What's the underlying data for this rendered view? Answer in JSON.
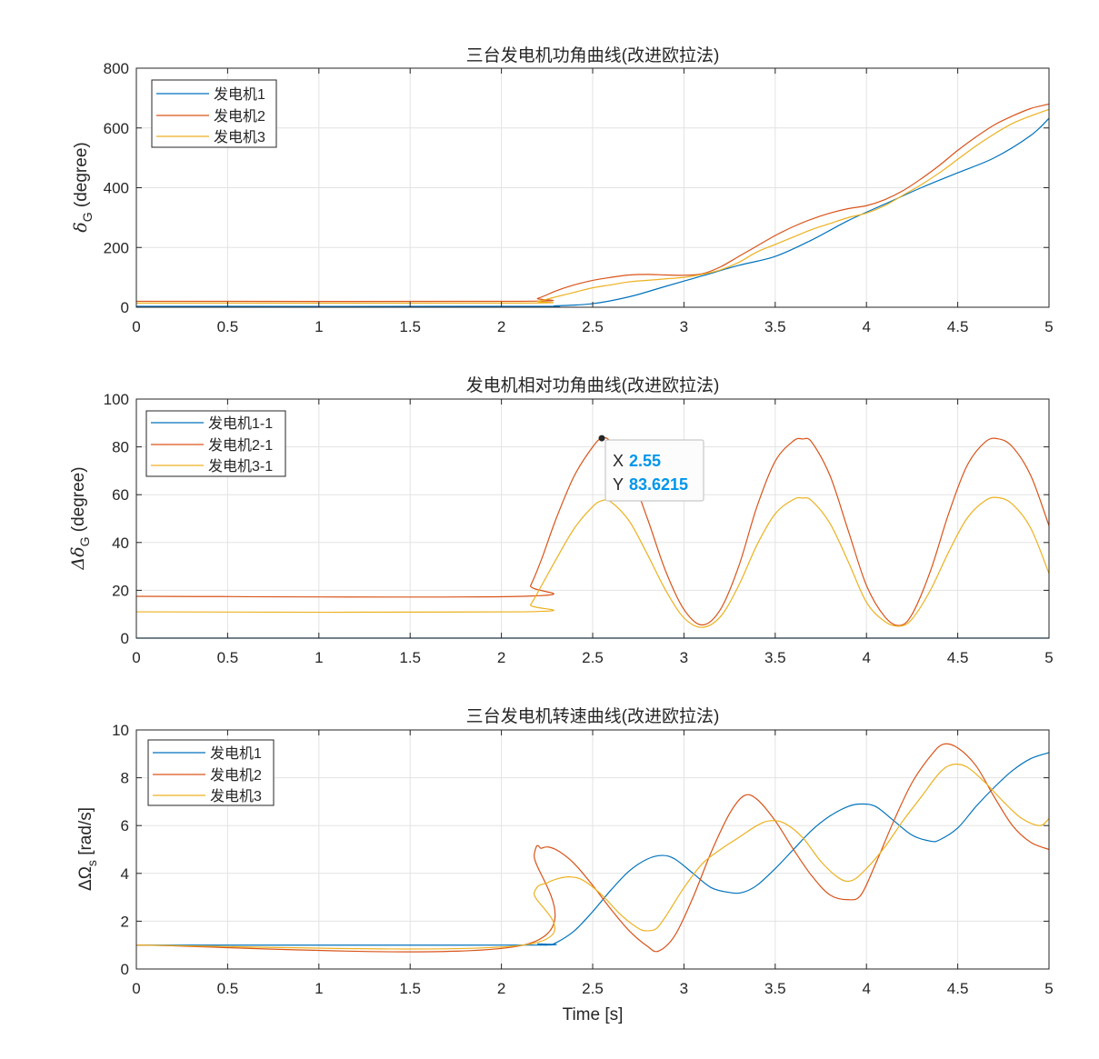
{
  "colors": {
    "series1": "#0072BD",
    "series2": "#D95319",
    "series3": "#EDB120",
    "axis": "#262626",
    "grid": "#e3e3e3",
    "datatip_value": "#0096EB"
  },
  "x_axis_label": "Time [s]",
  "chart_data": [
    {
      "type": "line",
      "title": "三台发电机功角曲线(改进欧拉法)",
      "ylabel_main": "δ",
      "ylabel_sub": "G",
      "ylabel_rest": " (degree)",
      "xlim": [
        0,
        5
      ],
      "ylim": [
        0,
        800
      ],
      "xticks": [
        0,
        0.5,
        1,
        1.5,
        2,
        2.5,
        3,
        3.5,
        4,
        4.5,
        5
      ],
      "xtick_labels": [
        "0",
        "0.5",
        "1",
        "1.5",
        "2",
        "2.5",
        "3",
        "3.5",
        "4",
        "4.5",
        "5"
      ],
      "yticks": [
        0,
        200,
        400,
        600,
        800
      ],
      "ytick_labels": [
        "0",
        "200",
        "400",
        "600",
        "800"
      ],
      "grid": true,
      "legend": "top-left",
      "series": [
        {
          "name": "发电机1",
          "x": [
            0,
            2.1,
            2.3,
            2.5,
            2.7,
            2.9,
            3.1,
            3.3,
            3.5,
            3.7,
            3.9,
            4.1,
            4.3,
            4.5,
            4.7,
            4.9,
            5.0
          ],
          "y": [
            3,
            3,
            5,
            12,
            35,
            70,
            105,
            140,
            170,
            225,
            290,
            345,
            400,
            450,
            500,
            575,
            632
          ]
        },
        {
          "name": "发电机2",
          "x": [
            0,
            2.1,
            2.2,
            2.3,
            2.4,
            2.5,
            2.6,
            2.7,
            2.8,
            2.9,
            3.0,
            3.1,
            3.2,
            3.3,
            3.4,
            3.5,
            3.6,
            3.7,
            3.8,
            3.9,
            4.0,
            4.1,
            4.2,
            4.3,
            4.4,
            4.5,
            4.6,
            4.7,
            4.8,
            4.9,
            5.0
          ],
          "y": [
            20,
            20,
            30,
            55,
            75,
            90,
            100,
            108,
            110,
            108,
            107,
            112,
            135,
            170,
            205,
            240,
            270,
            295,
            315,
            330,
            340,
            360,
            390,
            430,
            475,
            525,
            570,
            610,
            640,
            665,
            680
          ]
        },
        {
          "name": "发电机3",
          "x": [
            0,
            2.1,
            2.2,
            2.3,
            2.4,
            2.5,
            2.6,
            2.7,
            2.8,
            2.9,
            3.0,
            3.1,
            3.2,
            3.3,
            3.4,
            3.5,
            3.6,
            3.7,
            3.8,
            3.9,
            4.0,
            4.1,
            4.2,
            4.3,
            4.4,
            4.5,
            4.6,
            4.7,
            4.8,
            4.9,
            5.0
          ],
          "y": [
            14,
            14,
            20,
            35,
            50,
            65,
            75,
            85,
            90,
            95,
            100,
            110,
            125,
            150,
            185,
            210,
            235,
            260,
            280,
            300,
            315,
            340,
            375,
            410,
            450,
            495,
            540,
            580,
            615,
            640,
            662
          ]
        }
      ]
    },
    {
      "type": "line",
      "title": "发电机相对功角曲线(改进欧拉法)",
      "ylabel_main": "Δδ",
      "ylabel_sub": "G",
      "ylabel_rest": " (degree)",
      "xlim": [
        0,
        5
      ],
      "ylim": [
        0,
        100
      ],
      "xticks": [
        0,
        0.5,
        1,
        1.5,
        2,
        2.5,
        3,
        3.5,
        4,
        4.5,
        5
      ],
      "xtick_labels": [
        "0",
        "0.5",
        "1",
        "1.5",
        "2",
        "2.5",
        "3",
        "3.5",
        "4",
        "4.5",
        "5"
      ],
      "yticks": [
        0,
        20,
        40,
        60,
        80,
        100
      ],
      "ytick_labels": [
        "0",
        "20",
        "40",
        "60",
        "80",
        "100"
      ],
      "grid": true,
      "legend": "top-left",
      "series": [
        {
          "name": "发电机1-1",
          "x": [
            0,
            5
          ],
          "y": [
            0,
            0
          ]
        },
        {
          "name": "发电机2-1",
          "x": [
            0,
            2.12,
            2.16,
            2.22,
            2.3,
            2.4,
            2.5,
            2.55,
            2.6,
            2.7,
            2.8,
            2.9,
            3.0,
            3.1,
            3.2,
            3.3,
            3.4,
            3.5,
            3.6,
            3.65,
            3.7,
            3.8,
            3.9,
            4.0,
            4.1,
            4.18,
            4.25,
            4.35,
            4.45,
            4.55,
            4.65,
            4.72,
            4.8,
            4.9,
            5.0
          ],
          "y": [
            17.5,
            17.5,
            22,
            33,
            50,
            68,
            80,
            83.6,
            82,
            70,
            50,
            28,
            12,
            5.5,
            12,
            30,
            55,
            74,
            82.5,
            83.3,
            82,
            68,
            45,
            22,
            9,
            5.3,
            10,
            28,
            52,
            72,
            82,
            83.4,
            80,
            68,
            47
          ]
        },
        {
          "name": "发电机3-1",
          "x": [
            0,
            2.12,
            2.16,
            2.22,
            2.3,
            2.4,
            2.5,
            2.55,
            2.6,
            2.7,
            2.8,
            2.9,
            3.0,
            3.1,
            3.2,
            3.3,
            3.4,
            3.5,
            3.6,
            3.65,
            3.7,
            3.8,
            3.9,
            4.0,
            4.1,
            4.18,
            4.25,
            4.35,
            4.45,
            4.55,
            4.65,
            4.72,
            4.8,
            4.9,
            5.0
          ],
          "y": [
            11,
            11,
            14,
            22,
            33,
            46,
            55,
            57.5,
            57,
            49,
            35,
            20,
            8.5,
            4.5,
            9,
            22,
            39,
            52,
            58,
            58.6,
            57.5,
            48,
            32,
            15,
            7,
            5,
            8,
            20,
            36,
            50,
            57.5,
            58.8,
            56,
            46,
            27
          ]
        }
      ]
    },
    {
      "type": "line",
      "title": "三台发电机转速曲线(改进欧拉法)",
      "ylabel_main": "ΔΩ",
      "ylabel_sub": "s",
      "ylabel_rest": " [rad/s]",
      "xlabel": "Time [s]",
      "xlim": [
        0,
        5
      ],
      "ylim": [
        0,
        10
      ],
      "xticks": [
        0,
        0.5,
        1,
        1.5,
        2,
        2.5,
        3,
        3.5,
        4,
        4.5,
        5
      ],
      "xtick_labels": [
        "0",
        "0.5",
        "1",
        "1.5",
        "2",
        "2.5",
        "3",
        "3.5",
        "4",
        "4.5",
        "5"
      ],
      "yticks": [
        0,
        2,
        4,
        6,
        8,
        10
      ],
      "ytick_labels": [
        "0",
        "2",
        "4",
        "6",
        "8",
        "10"
      ],
      "grid": true,
      "legend": "top-left",
      "series": [
        {
          "name": "发电机1",
          "x": [
            0,
            2.12,
            2.2,
            2.25,
            2.3,
            2.4,
            2.5,
            2.6,
            2.7,
            2.8,
            2.88,
            2.95,
            3.05,
            3.15,
            3.25,
            3.32,
            3.4,
            3.5,
            3.6,
            3.7,
            3.8,
            3.9,
            3.97,
            4.05,
            4.15,
            4.25,
            4.35,
            4.4,
            4.5,
            4.6,
            4.7,
            4.8,
            4.9,
            5.0
          ],
          "y": [
            1,
            1,
            1.05,
            1,
            1.1,
            1.6,
            2.4,
            3.3,
            4.1,
            4.6,
            4.75,
            4.6,
            4.0,
            3.4,
            3.2,
            3.2,
            3.5,
            4.2,
            5.0,
            5.8,
            6.4,
            6.8,
            6.9,
            6.8,
            6.2,
            5.6,
            5.35,
            5.4,
            5.9,
            6.8,
            7.6,
            8.3,
            8.8,
            9.05
          ]
        },
        {
          "name": "发电机2",
          "x": [
            0,
            2.12,
            2.18,
            2.22,
            2.26,
            2.32,
            2.4,
            2.5,
            2.6,
            2.7,
            2.8,
            2.86,
            2.95,
            3.05,
            3.15,
            3.25,
            3.33,
            3.4,
            3.5,
            3.6,
            3.7,
            3.8,
            3.9,
            3.97,
            4.05,
            4.15,
            4.25,
            4.35,
            4.42,
            4.5,
            4.6,
            4.7,
            4.8,
            4.9,
            5.0
          ],
          "y": [
            1,
            1,
            4.8,
            5.05,
            5.1,
            4.9,
            4.4,
            3.5,
            2.5,
            1.6,
            0.95,
            0.75,
            1.4,
            3.0,
            4.9,
            6.5,
            7.25,
            7.1,
            6.2,
            5.0,
            3.9,
            3.1,
            2.9,
            3.1,
            4.4,
            6.2,
            7.8,
            8.9,
            9.4,
            9.25,
            8.5,
            7.2,
            6.0,
            5.3,
            5.0
          ]
        },
        {
          "name": "发电机3",
          "x": [
            0,
            2.12,
            2.18,
            2.25,
            2.32,
            2.38,
            2.45,
            2.55,
            2.65,
            2.75,
            2.8,
            2.85,
            2.9,
            3.0,
            3.1,
            3.2,
            3.3,
            3.4,
            3.47,
            3.55,
            3.65,
            3.75,
            3.85,
            3.92,
            4.0,
            4.1,
            4.2,
            4.3,
            4.4,
            4.47,
            4.55,
            4.65,
            4.75,
            4.85,
            4.95,
            5.0
          ],
          "y": [
            1,
            1,
            3.2,
            3.6,
            3.8,
            3.85,
            3.7,
            3.1,
            2.3,
            1.7,
            1.6,
            1.7,
            2.2,
            3.4,
            4.4,
            5.0,
            5.5,
            6.0,
            6.2,
            6.1,
            5.5,
            4.5,
            3.8,
            3.7,
            4.2,
            5.1,
            6.2,
            7.2,
            8.2,
            8.55,
            8.45,
            7.8,
            7.0,
            6.3,
            6.0,
            6.3
          ]
        }
      ]
    }
  ],
  "datatip": {
    "x_label": "X",
    "x_value": "2.55",
    "y_label": "Y",
    "y_value": "83.6215",
    "point_x": 2.55,
    "point_y": 83.6215
  }
}
